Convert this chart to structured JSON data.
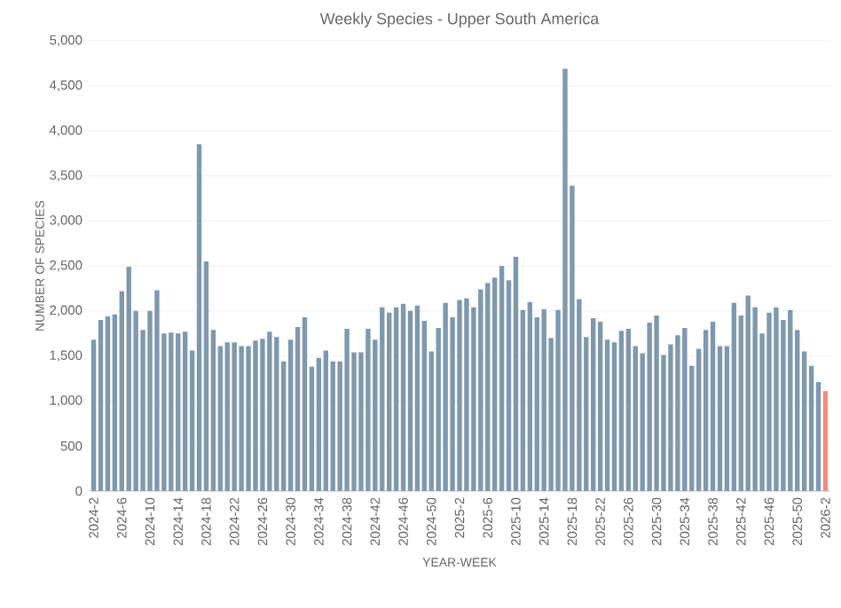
{
  "chart_data": {
    "type": "bar",
    "title": "Weekly Species - Upper South America",
    "xlabel": "YEAR-WEEK",
    "ylabel": "NUMBER OF SPECIES",
    "categories": [
      "2024-2",
      null,
      null,
      null,
      "2024-6",
      null,
      null,
      null,
      "2024-10",
      null,
      null,
      null,
      "2024-14",
      null,
      null,
      null,
      "2024-18",
      null,
      null,
      null,
      "2024-22",
      null,
      null,
      null,
      "2024-26",
      null,
      null,
      null,
      "2024-30",
      null,
      null,
      null,
      "2024-34",
      null,
      null,
      null,
      "2024-38",
      null,
      null,
      null,
      "2024-42",
      null,
      null,
      null,
      "2024-46",
      null,
      null,
      null,
      "2024-50",
      null,
      null,
      null,
      "2025-2",
      null,
      null,
      null,
      "2025-6",
      null,
      null,
      null,
      "2025-10",
      null,
      null,
      null,
      "2025-14",
      null,
      null,
      null,
      "2025-18",
      null,
      null,
      null,
      "2025-22",
      null,
      null,
      null,
      "2025-26",
      null,
      null,
      null,
      "2025-30",
      null,
      null,
      null,
      "2025-34",
      null,
      null,
      null,
      "2025-38",
      null,
      null,
      null,
      "2025-42",
      null,
      null,
      null,
      "2025-46",
      null,
      null,
      null,
      "2025-50",
      null,
      null,
      null,
      "2026-2"
    ],
    "values": [
      1680,
      1900,
      1940,
      1960,
      2220,
      2490,
      2000,
      1790,
      2000,
      2230,
      1750,
      1760,
      1750,
      1770,
      1560,
      3850,
      2550,
      1790,
      1610,
      1650,
      1650,
      1610,
      1610,
      1670,
      1690,
      1770,
      1710,
      1440,
      1680,
      1820,
      1930,
      1380,
      1480,
      1560,
      1440,
      1440,
      1800,
      1540,
      1540,
      1800,
      1680,
      2040,
      1980,
      2040,
      2080,
      2000,
      2060,
      1890,
      1550,
      1810,
      2090,
      1930,
      2120,
      2140,
      2040,
      2240,
      2310,
      2370,
      2500,
      2340,
      2600,
      2010,
      2100,
      1930,
      2020,
      1700,
      2010,
      4690,
      3390,
      2130,
      1710,
      1920,
      1880,
      1680,
      1650,
      1780,
      1800,
      1610,
      1530,
      1870,
      1950,
      1510,
      1630,
      1730,
      1810,
      1390,
      1580,
      1790,
      1880,
      1610,
      1610,
      2090,
      1950,
      2170,
      2040,
      1750,
      1980,
      2040,
      1900,
      2010,
      1790,
      1550,
      1390,
      1210,
      1110
    ],
    "colors": [
      "#7f98ae",
      "#7f98ae",
      "#7f98ae",
      "#7f98ae",
      "#7f98ae",
      "#7f98ae",
      "#7f98ae",
      "#7f98ae",
      "#7f98ae",
      "#7f98ae",
      "#7f98ae",
      "#7f98ae",
      "#7f98ae",
      "#7f98ae",
      "#7f98ae",
      "#7f98ae",
      "#7f98ae",
      "#7f98ae",
      "#7f98ae",
      "#7f98ae",
      "#7f98ae",
      "#7f98ae",
      "#7f98ae",
      "#7f98ae",
      "#7f98ae",
      "#7f98ae",
      "#7f98ae",
      "#7f98ae",
      "#7f98ae",
      "#7f98ae",
      "#7f98ae",
      "#7f98ae",
      "#7f98ae",
      "#7f98ae",
      "#7f98ae",
      "#7f98ae",
      "#7f98ae",
      "#7f98ae",
      "#7f98ae",
      "#7f98ae",
      "#7f98ae",
      "#7f98ae",
      "#7f98ae",
      "#7f98ae",
      "#7f98ae",
      "#7f98ae",
      "#7f98ae",
      "#7f98ae",
      "#7f98ae",
      "#7f98ae",
      "#7f98ae",
      "#7f98ae",
      "#7f98ae",
      "#7f98ae",
      "#7f98ae",
      "#7f98ae",
      "#7f98ae",
      "#7f98ae",
      "#7f98ae",
      "#7f98ae",
      "#7f98ae",
      "#7f98ae",
      "#7f98ae",
      "#7f98ae",
      "#7f98ae",
      "#7f98ae",
      "#7f98ae",
      "#7f98ae",
      "#7f98ae",
      "#7f98ae",
      "#7f98ae",
      "#7f98ae",
      "#7f98ae",
      "#7f98ae",
      "#7f98ae",
      "#7f98ae",
      "#7f98ae",
      "#7f98ae",
      "#7f98ae",
      "#7f98ae",
      "#7f98ae",
      "#7f98ae",
      "#7f98ae",
      "#7f98ae",
      "#7f98ae",
      "#7f98ae",
      "#7f98ae",
      "#7f98ae",
      "#7f98ae",
      "#7f98ae",
      "#7f98ae",
      "#7f98ae",
      "#7f98ae",
      "#7f98ae",
      "#7f98ae",
      "#7f98ae",
      "#7f98ae",
      "#7f98ae",
      "#7f98ae",
      "#7f98ae",
      "#7f98ae",
      "#7f98ae",
      "#7f98ae",
      "#7f98ae",
      "#f0907a"
    ],
    "ylim": [
      0,
      5000
    ],
    "yticks": [
      0,
      500,
      {
        "value": 1000,
        "label": "1,000"
      },
      {
        "value": 1500,
        "label": "1,500"
      },
      {
        "value": 2000,
        "label": "2,000"
      },
      {
        "value": 2500,
        "label": "2,500"
      },
      {
        "value": 3000,
        "label": "3,000"
      },
      {
        "value": 3500,
        "label": "3,500"
      },
      {
        "value": 4000,
        "label": "4,000"
      },
      {
        "value": 4500,
        "label": "4,500"
      },
      {
        "value": 5000,
        "label": "5,000"
      }
    ],
    "grid": "y"
  }
}
